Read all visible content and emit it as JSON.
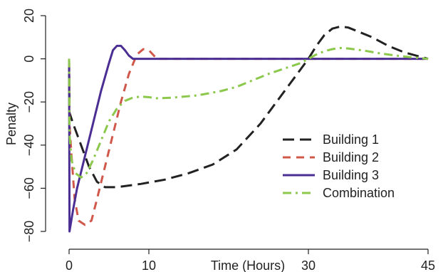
{
  "chart_data": {
    "type": "line",
    "xlabel": "Time (Hours)",
    "ylabel": "Penalty",
    "xlim": [
      0,
      45
    ],
    "ylim": [
      -80,
      20
    ],
    "xticks": [
      0,
      10,
      30,
      45
    ],
    "yticks": [
      20,
      0,
      -20,
      -40,
      -60,
      -80
    ],
    "grid": false,
    "legend_position": "right-middle",
    "series": [
      {
        "name": "Building 1",
        "color": "#222222",
        "dash": "long-dash",
        "points": [
          [
            0,
            0
          ],
          [
            0.05,
            -25
          ],
          [
            0.5,
            -30
          ],
          [
            1.5,
            -40
          ],
          [
            2.5,
            -50
          ],
          [
            3.5,
            -57
          ],
          [
            4.5,
            -59.5
          ],
          [
            6,
            -59.5
          ],
          [
            9,
            -58
          ],
          [
            12,
            -56
          ],
          [
            15,
            -53
          ],
          [
            18,
            -49
          ],
          [
            21,
            -42
          ],
          [
            24,
            -30
          ],
          [
            26,
            -20
          ],
          [
            28,
            -10
          ],
          [
            30,
            0
          ],
          [
            31,
            6
          ],
          [
            32,
            11
          ],
          [
            33,
            14
          ],
          [
            34,
            15
          ],
          [
            35,
            14.5
          ],
          [
            36,
            13
          ],
          [
            38,
            10
          ],
          [
            40,
            6
          ],
          [
            42,
            3
          ],
          [
            44,
            1
          ],
          [
            45,
            0
          ]
        ]
      },
      {
        "name": "Building 2",
        "color": "#d0584a",
        "dash": "dash",
        "points": [
          [
            0,
            0
          ],
          [
            0.05,
            -30
          ],
          [
            0.3,
            -45
          ],
          [
            0.7,
            -65
          ],
          [
            1.2,
            -75
          ],
          [
            2,
            -77
          ],
          [
            2.8,
            -75
          ],
          [
            3.5,
            -65
          ],
          [
            4.5,
            -50
          ],
          [
            5.5,
            -35
          ],
          [
            6.5,
            -20
          ],
          [
            7.5,
            -7
          ],
          [
            8.5,
            2
          ],
          [
            9.3,
            4.5
          ],
          [
            10,
            4
          ],
          [
            10.5,
            2
          ],
          [
            11,
            0
          ],
          [
            45,
            0
          ]
        ]
      },
      {
        "name": "Building 3",
        "color": "#4b2e93",
        "dash": "solid",
        "points": [
          [
            0,
            0
          ],
          [
            0.05,
            -80
          ],
          [
            0.5,
            -70
          ],
          [
            1,
            -60
          ],
          [
            2,
            -45
          ],
          [
            3,
            -30
          ],
          [
            4,
            -15
          ],
          [
            5,
            -2
          ],
          [
            5.5,
            4
          ],
          [
            6,
            6
          ],
          [
            6.5,
            6
          ],
          [
            7,
            4
          ],
          [
            7.5,
            1.5
          ],
          [
            8,
            0
          ],
          [
            45,
            0
          ]
        ]
      },
      {
        "name": "Combination",
        "color": "#8cc84b",
        "dash": "dash-dot",
        "points": [
          [
            0,
            0
          ],
          [
            0.05,
            -35
          ],
          [
            0.3,
            -47
          ],
          [
            0.8,
            -53
          ],
          [
            1.5,
            -55
          ],
          [
            2.2,
            -53
          ],
          [
            3,
            -47
          ],
          [
            4,
            -38
          ],
          [
            5,
            -29
          ],
          [
            6,
            -23
          ],
          [
            7,
            -19.5
          ],
          [
            8,
            -18
          ],
          [
            9,
            -17.5
          ],
          [
            10,
            -17.8
          ],
          [
            11,
            -18.3
          ],
          [
            13,
            -18
          ],
          [
            16,
            -17
          ],
          [
            19,
            -15
          ],
          [
            21,
            -13
          ],
          [
            23,
            -10
          ],
          [
            25,
            -7
          ],
          [
            27,
            -4.5
          ],
          [
            29,
            -2
          ],
          [
            30,
            0
          ],
          [
            31,
            2
          ],
          [
            32,
            3.5
          ],
          [
            33,
            4.5
          ],
          [
            34,
            5
          ],
          [
            35,
            4.8
          ],
          [
            37,
            3.8
          ],
          [
            39,
            2.5
          ],
          [
            41,
            1.5
          ],
          [
            43,
            0.7
          ],
          [
            45,
            0
          ]
        ]
      }
    ]
  }
}
